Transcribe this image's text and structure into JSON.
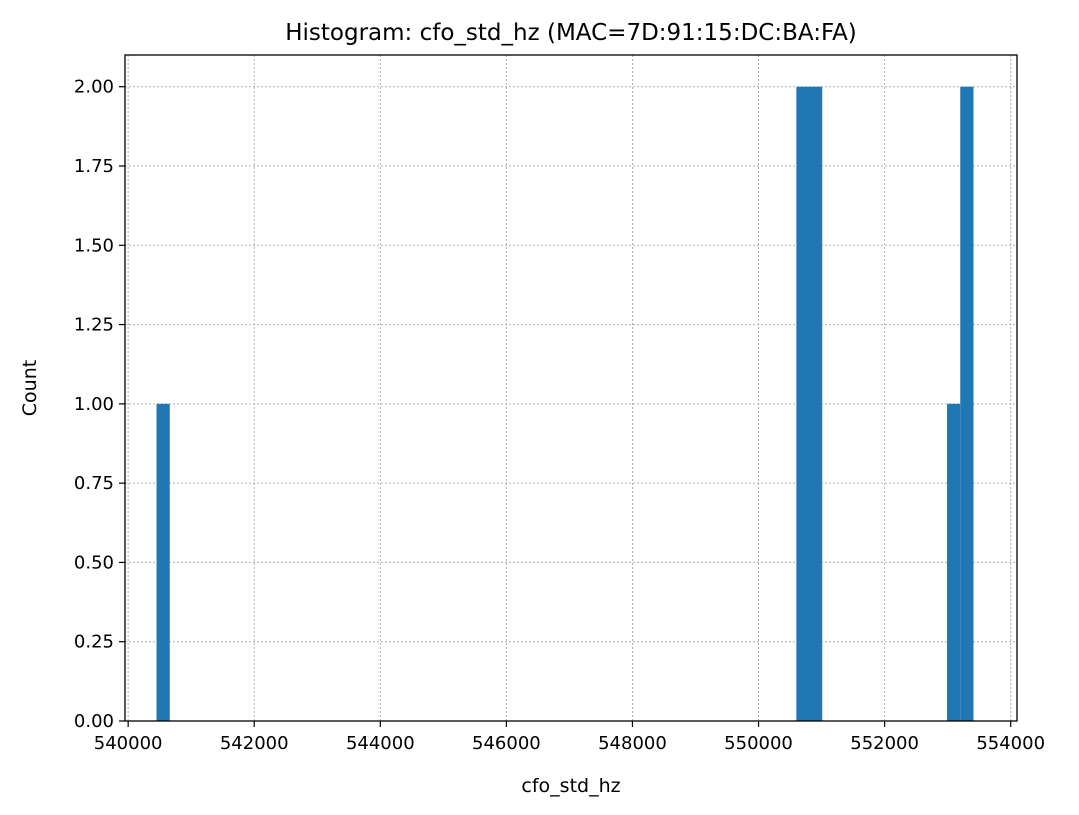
{
  "chart_data": {
    "type": "bar",
    "subtype": "histogram",
    "title": "Histogram: cfo_std_hz (MAC=7D:91:15:DC:BA:FA)",
    "xlabel": "cfo_std_hz",
    "ylabel": "Count",
    "xlim": [
      539950,
      554100
    ],
    "ylim": [
      0,
      2.1
    ],
    "x_ticks": [
      540000,
      542000,
      544000,
      546000,
      548000,
      550000,
      552000,
      554000
    ],
    "x_tick_labels": [
      "540000",
      "542000",
      "544000",
      "546000",
      "548000",
      "550000",
      "552000",
      "554000"
    ],
    "y_ticks": [
      0,
      0.25,
      0.5,
      0.75,
      1.0,
      1.25,
      1.5,
      1.75,
      2.0
    ],
    "y_tick_labels": [
      "0.00",
      "0.25",
      "0.50",
      "0.75",
      "1.00",
      "1.25",
      "1.50",
      "1.75",
      "2.00"
    ],
    "grid": true,
    "bar_color": "#1f77b4",
    "bins": [
      {
        "x0": 540450,
        "x1": 540660,
        "count": 1
      },
      {
        "x0": 550600,
        "x1": 550800,
        "count": 2
      },
      {
        "x0": 550800,
        "x1": 551010,
        "count": 2
      },
      {
        "x0": 552990,
        "x1": 553200,
        "count": 1
      },
      {
        "x0": 553200,
        "x1": 553410,
        "count": 2
      }
    ]
  }
}
